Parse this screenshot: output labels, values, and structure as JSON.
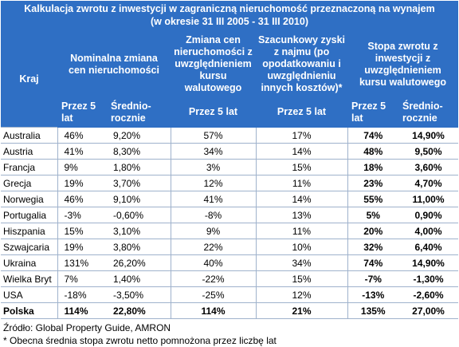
{
  "title": {
    "line1": "Kalkulacja zwrotu z inwestycji w zagraniczną nieruchomość przeznaczoną na wynajem",
    "line2": "(w okresie 31 III 2005 - 31 III 2010)"
  },
  "headers": {
    "country": "Kraj",
    "nominal": "Nominalna zmiana cen nieruchomości",
    "change_currency": "Zmiana cen nieruchomości z uwzględnieniem kursu walutowego",
    "rent": "Szacunkowy zyski z najmu (po opodatkowaniu i uwzględnieniu innych kosztów)*",
    "rate": "Stopa zwrotu z inwestycji z uwzględnieniem kursu walutowego"
  },
  "subheaders": {
    "five_years": "Przez 5 lat",
    "five_years_line1": "Przez 5",
    "five_years_line2": "lat",
    "annual_line1": "Średnio-",
    "annual_line2": "rocznie"
  },
  "rows": [
    {
      "country": "Australia",
      "nom5": "46%",
      "nomAvg": "9,20%",
      "chg5": "57%",
      "rent5": "17%",
      "rate5": "74%",
      "rateAvg": "14,90%"
    },
    {
      "country": "Austria",
      "nom5": "41%",
      "nomAvg": "8,30%",
      "chg5": "34%",
      "rent5": "14%",
      "rate5": "48%",
      "rateAvg": "9,50%"
    },
    {
      "country": "Francja",
      "nom5": "9%",
      "nomAvg": "1,80%",
      "chg5": "3%",
      "rent5": "15%",
      "rate5": "18%",
      "rateAvg": "3,60%"
    },
    {
      "country": "Grecja",
      "nom5": "19%",
      "nomAvg": "3,70%",
      "chg5": "12%",
      "rent5": "11%",
      "rate5": "23%",
      "rateAvg": "4,70%"
    },
    {
      "country": "Norwegia",
      "nom5": "46%",
      "nomAvg": "9,10%",
      "chg5": "41%",
      "rent5": "14%",
      "rate5": "55%",
      "rateAvg": "11,00%"
    },
    {
      "country": "Portugalia",
      "nom5": "-3%",
      "nomAvg": "-0,60%",
      "chg5": "-8%",
      "rent5": "13%",
      "rate5": "5%",
      "rateAvg": "0,90%"
    },
    {
      "country": "Hiszpania",
      "nom5": "15%",
      "nomAvg": "3,10%",
      "chg5": "9%",
      "rent5": "11%",
      "rate5": "20%",
      "rateAvg": "4,00%"
    },
    {
      "country": "Szwajcaria",
      "nom5": "19%",
      "nomAvg": "3,80%",
      "chg5": "22%",
      "rent5": "10%",
      "rate5": "32%",
      "rateAvg": "6,40%"
    },
    {
      "country": "Ukraina",
      "nom5": "131%",
      "nomAvg": "26,20%",
      "chg5": "40%",
      "rent5": "34%",
      "rate5": "74%",
      "rateAvg": "14,90%"
    },
    {
      "country": "Wielka Bryt",
      "nom5": "7%",
      "nomAvg": "1,40%",
      "chg5": "-22%",
      "rent5": "15%",
      "rate5": "-7%",
      "rateAvg": "-1,30%"
    },
    {
      "country": "USA",
      "nom5": "-18%",
      "nomAvg": "-3,50%",
      "chg5": "-25%",
      "rent5": "12%",
      "rate5": "-13%",
      "rateAvg": "-2,60%"
    }
  ],
  "total": {
    "country": "Polska",
    "nom5": "114%",
    "nomAvg": "22,80%",
    "chg5": "114%",
    "rent5": "21%",
    "rate5": "135%",
    "rateAvg": "27,00%"
  },
  "footer": {
    "source": "Źródło: Global Property Guide, AMRON",
    "note": "* Obecna średnia stopa zwrotu netto pomnożona przez liczbę lat"
  }
}
